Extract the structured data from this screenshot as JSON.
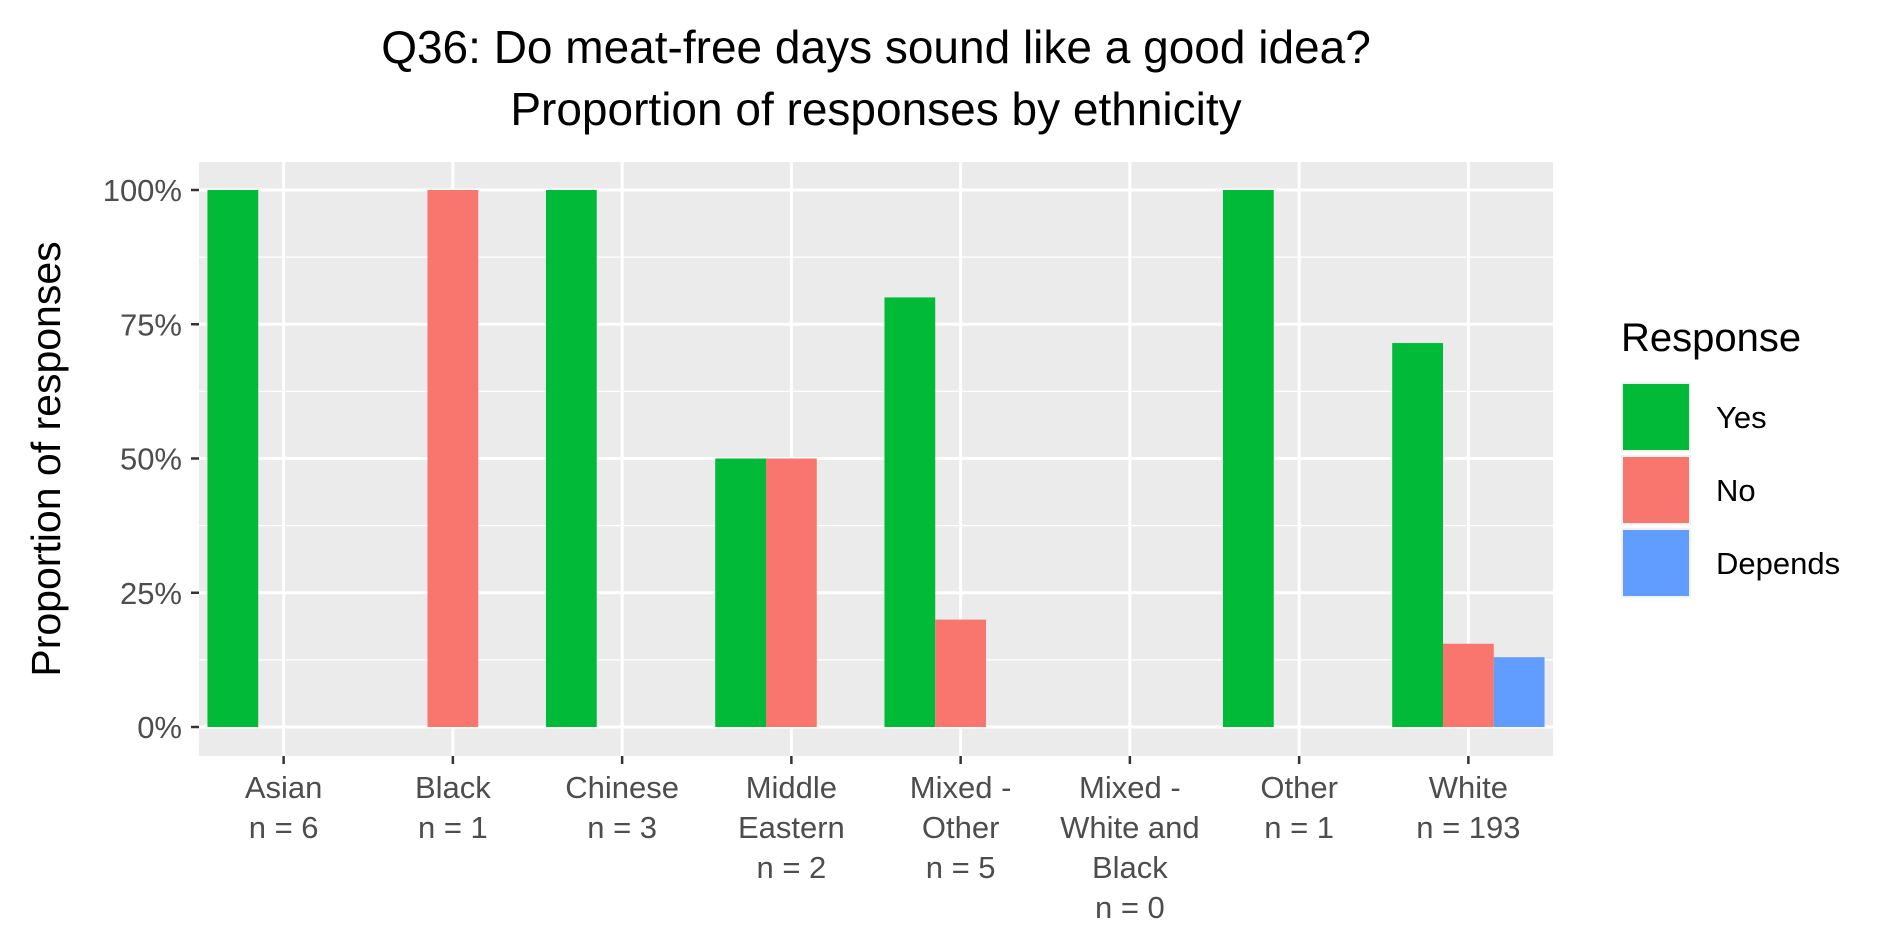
{
  "chart_data": {
    "type": "bar",
    "title": "Q36: Do meat-free days sound like a good idea?",
    "subtitle": "Proportion of responses by ethnicity",
    "xlabel": "",
    "ylabel": "Proportion of responses",
    "ylim": [
      0,
      1.05
    ],
    "yticks": [
      "0%",
      "25%",
      "50%",
      "75%",
      "100%"
    ],
    "grid": true,
    "legend": {
      "title": "Response",
      "position": "right"
    },
    "categories": [
      [
        "Asian",
        "n = 6"
      ],
      [
        "Black",
        "n = 1"
      ],
      [
        "Chinese",
        "n = 3"
      ],
      [
        "Middle",
        "Eastern",
        "n = 2"
      ],
      [
        "Mixed -",
        "Other",
        "n = 5"
      ],
      [
        "Mixed -",
        "White and",
        "Black",
        "n = 0"
      ],
      [
        "Other",
        "n = 1"
      ],
      [
        "White",
        "n = 193"
      ]
    ],
    "series": [
      {
        "name": "Yes",
        "color": "#00ba38",
        "values": [
          1.0,
          0,
          1.0,
          0.5,
          0.8,
          0,
          1.0,
          0.715
        ]
      },
      {
        "name": "No",
        "color": "#f8766d",
        "values": [
          0,
          1.0,
          0,
          0.5,
          0.2,
          0,
          0,
          0.155
        ]
      },
      {
        "name": "Depends",
        "color": "#619cff",
        "values": [
          0,
          0,
          0,
          0,
          0,
          0,
          0,
          0.13
        ]
      }
    ]
  }
}
